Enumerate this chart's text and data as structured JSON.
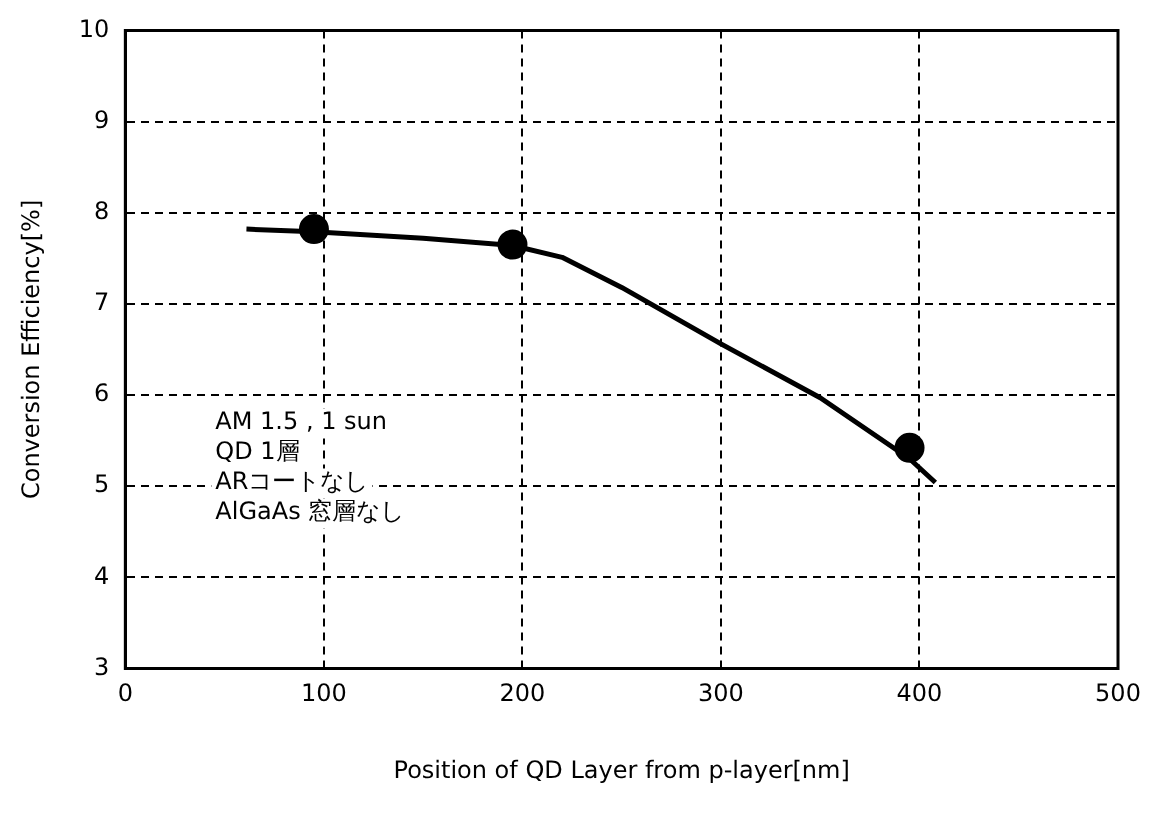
{
  "chart_data": {
    "type": "scatter",
    "xlabel": "Position of QD Layer from p-layer[nm]",
    "ylabel": "Conversion Efficiency[%]",
    "xlim": [
      0,
      500
    ],
    "xticks": [
      0,
      100,
      200,
      300,
      400,
      500
    ],
    "ylim": [
      3,
      10
    ],
    "yticks": [
      3,
      4,
      5,
      6,
      7,
      8,
      9,
      10
    ],
    "grid": true,
    "legend": false,
    "series": [
      {
        "color": "#000000",
        "marker": "circle",
        "x": [
          95,
          195,
          395
        ],
        "values": [
          7.82,
          7.65,
          5.42
        ]
      },
      {
        "type": "line",
        "color": "#000000",
        "marker": "none",
        "line_style": "solid",
        "x": [
          61,
          95,
          150,
          195,
          220,
          250,
          300,
          350,
          395,
          408
        ],
        "values": [
          7.82,
          7.79,
          7.72,
          7.64,
          7.51,
          7.18,
          6.56,
          5.97,
          5.3,
          5.04
        ]
      }
    ],
    "annotations": [
      "AM 1.5 , 1 sun",
      "QD 1層",
      "ARコートなし",
      "AlGaAs 窓層なし"
    ]
  }
}
